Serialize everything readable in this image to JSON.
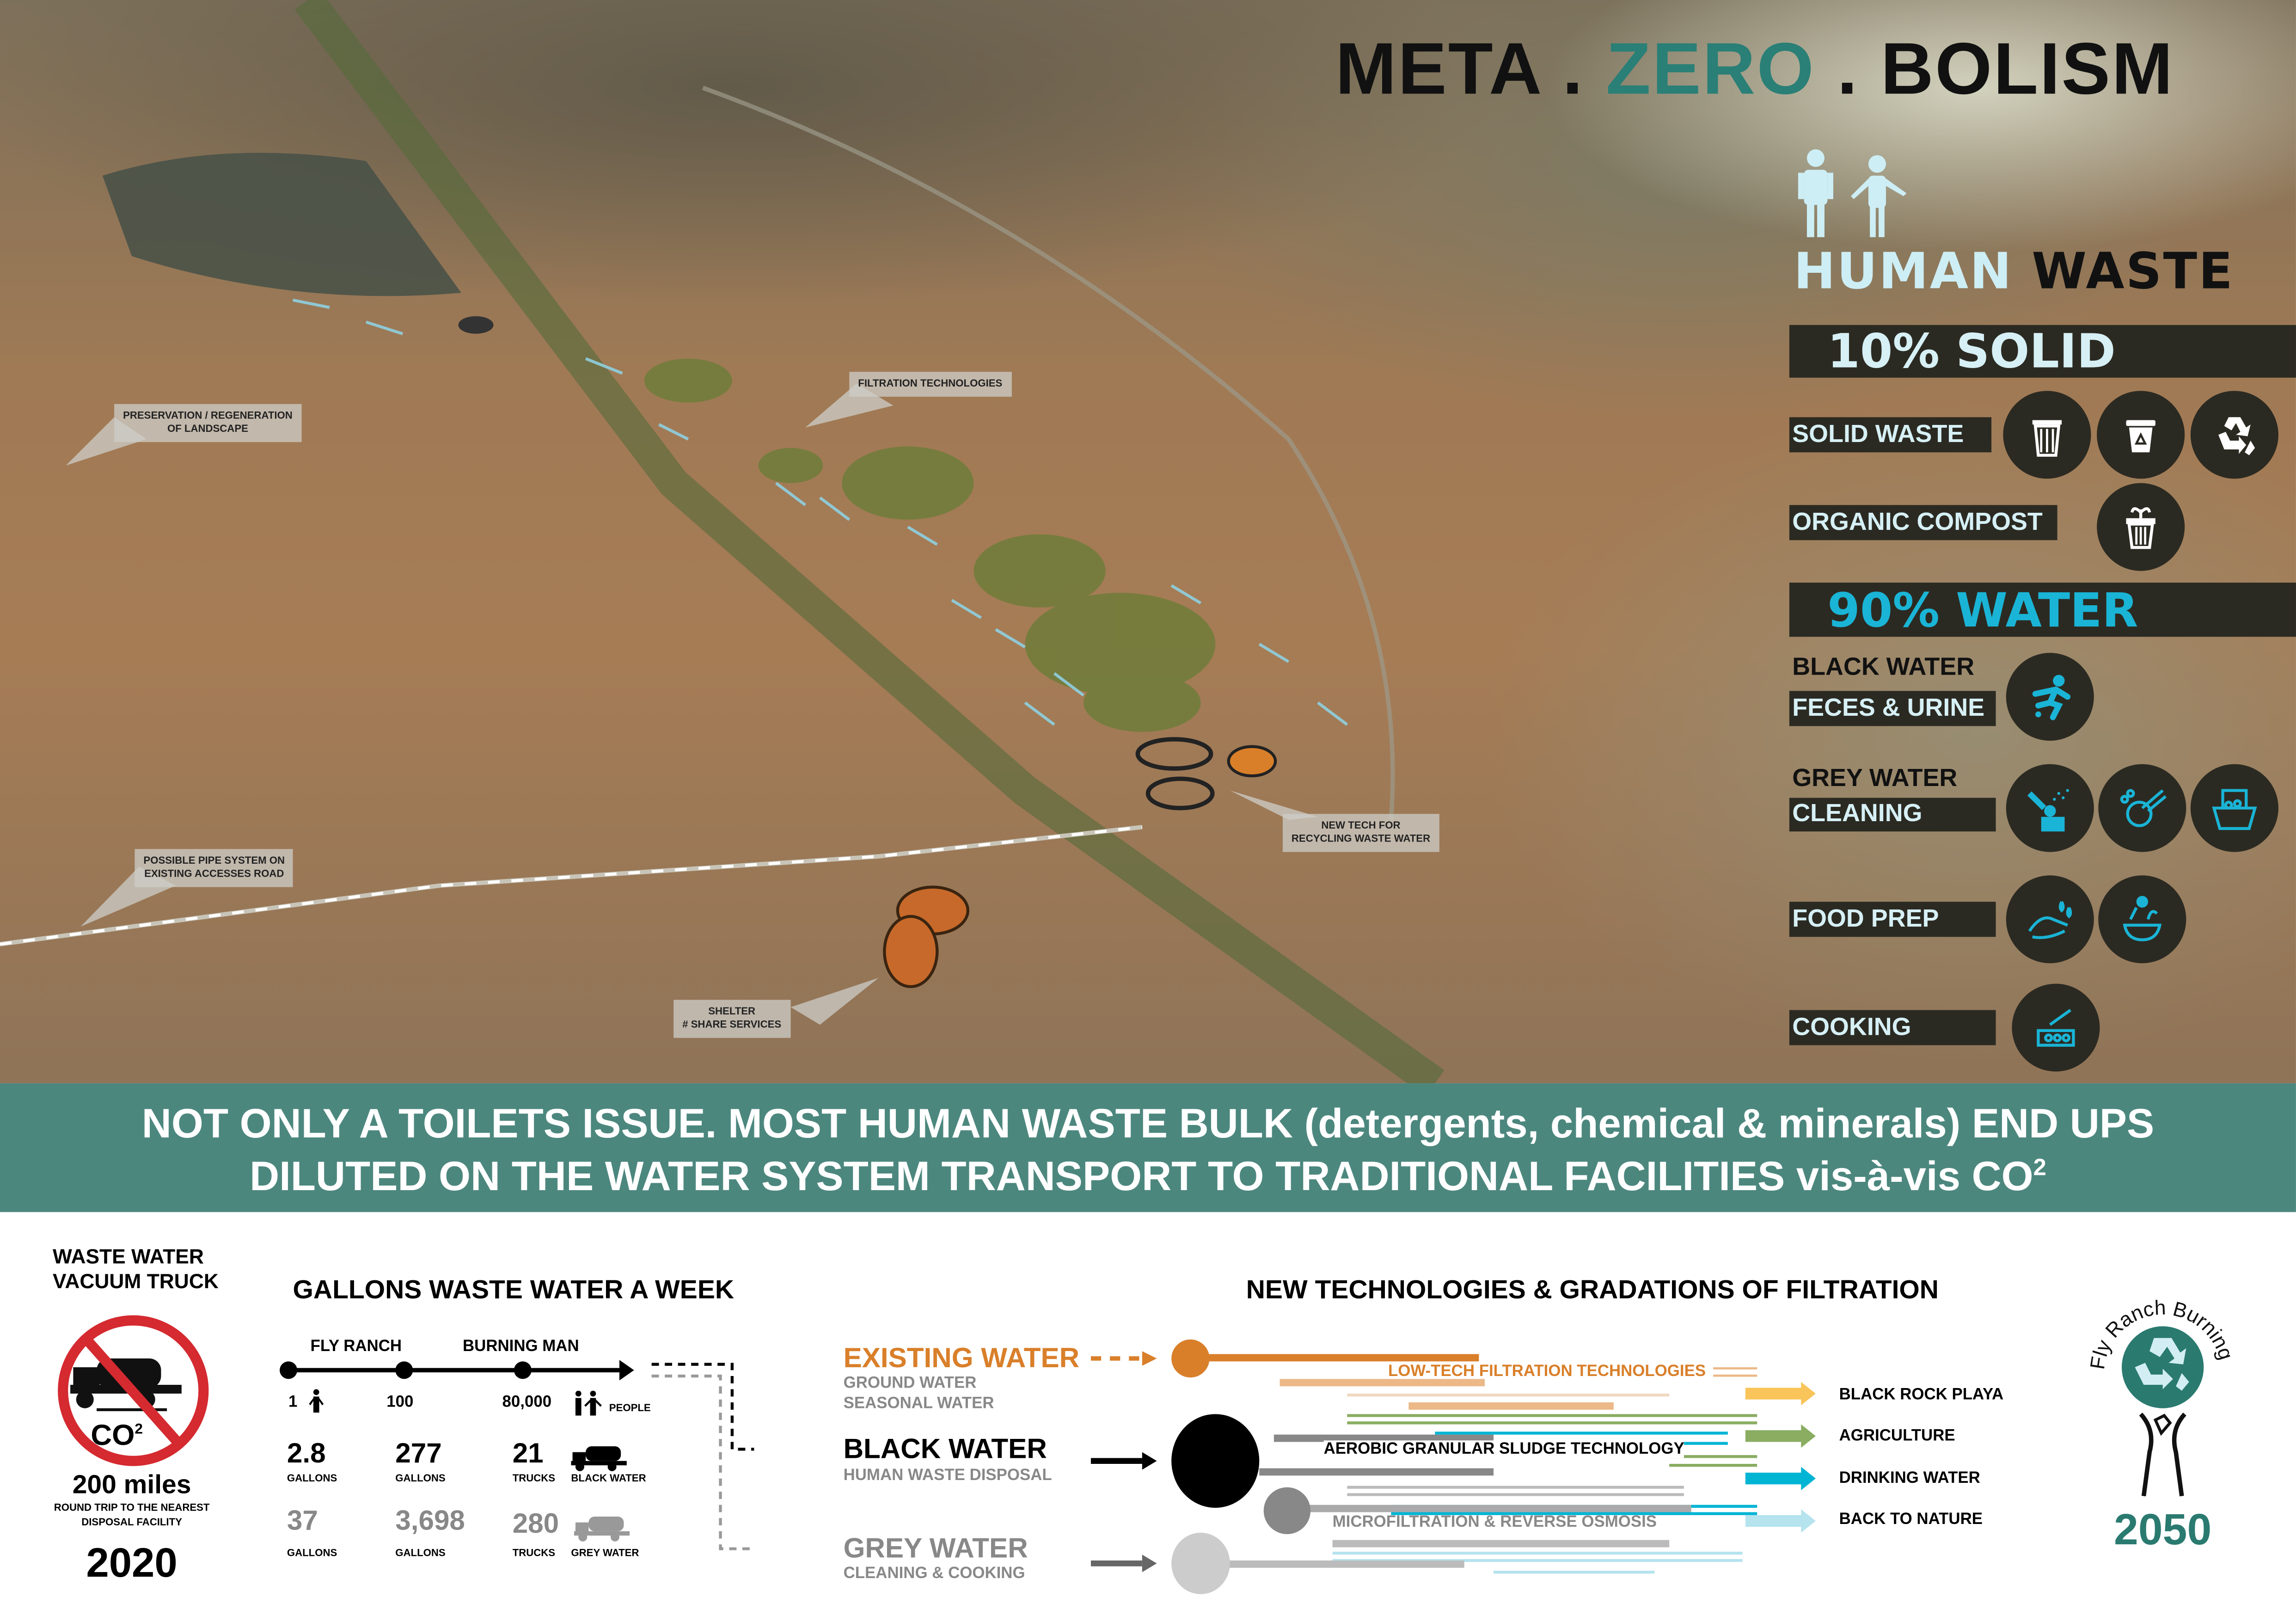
{
  "title": {
    "part1": "META",
    "sep1": " . ",
    "part2": "ZERO",
    "sep2": " . ",
    "part3": "BOLISM"
  },
  "colors": {
    "teal": "#2a7f76",
    "cyan": "#1ab4d6",
    "dark_panel": "#2b2a22",
    "light_blue": "#d6f0f5",
    "orange": "#d97f2a",
    "red": "#d42a30"
  },
  "callouts": {
    "preservation": [
      "PRESERVATION / REGENERATION",
      "OF LANDSCAPE"
    ],
    "filtration": [
      "FILTRATION  TECHNOLOGIES"
    ],
    "pipe": [
      "POSSIBLE PIPE SYSTEM  ON",
      "EXISTING ACCESSES ROAD"
    ],
    "newtech": [
      "NEW TECH FOR",
      "RECYCLING WASTE WATER"
    ],
    "shelter": [
      "SHELTER",
      "# SHARE SERVICES"
    ]
  },
  "panel": {
    "heading_a": "HUMAN",
    "heading_b": "WASTE",
    "solid_header": "10% SOLID",
    "solid_waste": "SOLID WASTE",
    "solid_icons": [
      "trash-can-icon",
      "recycle-bin-icon",
      "recycle-icon"
    ],
    "organic": "ORGANIC COMPOST",
    "organic_icon": "compost-bin-icon",
    "water_header": "90% WATER",
    "black_water": "BLACK  WATER",
    "feces": "FECES & URINE",
    "feces_icon": "squatting-person-icon",
    "grey_water": "GREY  WATER",
    "cleaning": "CLEANING",
    "cleaning_icons": [
      "shower-icon",
      "dish-washing-icon",
      "laundry-tub-icon"
    ],
    "food_prep": "FOOD PREP",
    "food_icons": [
      "hand-washing-icon",
      "vegetable-bowl-icon"
    ],
    "cooking": "COOKING",
    "cooking_icon": "cooking-pot-icon"
  },
  "band": {
    "line1": "NOT ONLY A TOILETS ISSUE. MOST HUMAN WASTE BULK (detergents, chemical & minerals) END UPS",
    "line2": "DILUTED ON THE WATER SYSTEM TRANSPORT TO TRADITIONAL FACILITIES vis-à-vis CO",
    "line2_sup": "2"
  },
  "truck": {
    "title1": "WASTE WATER",
    "title2": "VACUUM TRUCK",
    "co": "CO",
    "co_sup": "2",
    "miles": "200 miles",
    "desc1": "ROUND TRIP TO THE NEAREST",
    "desc2": "DISPOSAL FACILITY",
    "year": "2020"
  },
  "gallons": {
    "title": "GALLONS  WASTE WATER  A WEEK",
    "fly_ranch": "FLY RANCH",
    "burning_man": "BURNING MAN",
    "people": [
      "1",
      "100",
      "80,000"
    ],
    "people_label": "PEOPLE",
    "black": {
      "values": [
        "2.8",
        "277",
        "21"
      ],
      "units": [
        "GALLONS",
        "GALLONS",
        "TRUCKS"
      ],
      "label": "BLACK WATER"
    },
    "grey": {
      "values": [
        "37",
        "3,698",
        "280"
      ],
      "units": [
        "GALLONS",
        "GALLONS",
        "TRUCKS"
      ],
      "label": "GREY WATER"
    }
  },
  "filtration": {
    "title": "NEW TECHNOLOGIES & GRADATIONS OF FILTRATION",
    "existing": "EXISTING WATER",
    "existing_sub1": "GROUND WATER",
    "existing_sub2": "SEASONAL WATER",
    "black": "BLACK WATER",
    "black_sub": "HUMAN WASTE DISPOSAL",
    "grey": "GREY WATER",
    "grey_sub": "CLEANING & COOKING",
    "low_tech": "LOW-TECH  FILTRATION  TECHNOLOGIES",
    "aerobic": "AEROBIC GRANULAR SLUDGE TECHNOLOGY",
    "micro": "MICROFILTRATION  & REVERSE OSMOSIS",
    "outputs": [
      {
        "label": "BLACK ROCK PLAYA",
        "color": "#f9c55a"
      },
      {
        "label": "AGRICULTURE",
        "color": "#8aad62"
      },
      {
        "label": "DRINKING WATER",
        "color": "#00b4d4"
      },
      {
        "label": "BACK TO NATURE",
        "color": "#b5e3ee"
      }
    ]
  },
  "logo": {
    "arc_text": "Fly Ranch  Burning Man",
    "year": "2050"
  }
}
